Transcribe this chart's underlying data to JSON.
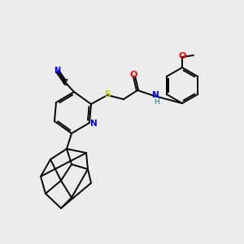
{
  "background_color": "#ececec",
  "bond_color": "#000000",
  "bond_width": 1.4,
  "atom_colors": {
    "N": "#0000ff",
    "O": "#ff0000",
    "S": "#cccc00",
    "C": "#000000",
    "N_dark": "#008080"
  },
  "figsize": [
    3.0,
    3.0
  ],
  "dpi": 100
}
